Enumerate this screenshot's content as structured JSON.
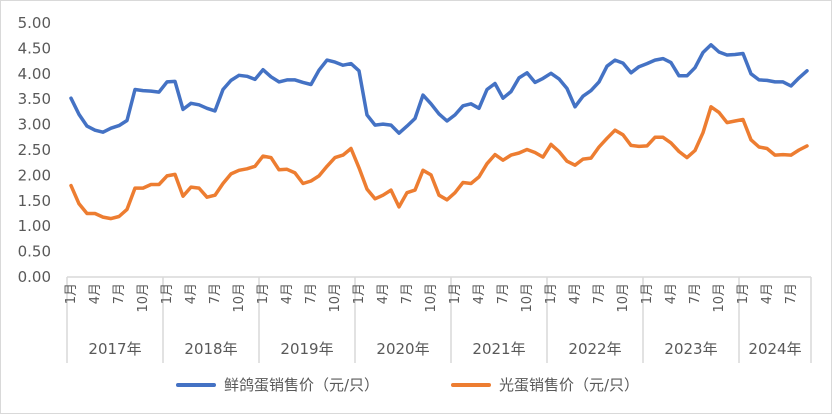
{
  "chart_data": {
    "type": "line",
    "title": "",
    "xlabel": "",
    "ylabel": "",
    "ylim": [
      0,
      5
    ],
    "y_ticks": [
      "0.00",
      "0.50",
      "1.00",
      "1.50",
      "2.00",
      "2.50",
      "3.00",
      "3.50",
      "4.00",
      "4.50",
      "5.00"
    ],
    "grid": false,
    "legend_position": "bottom",
    "years": [
      "2017年",
      "2018年",
      "2019年",
      "2020年",
      "2021年",
      "2022年",
      "2023年",
      "2024年"
    ],
    "months_per_year": [
      12,
      12,
      12,
      12,
      12,
      12,
      12,
      9
    ],
    "month_tick_labels": [
      "1月",
      "4月",
      "7月",
      "10月"
    ],
    "series": [
      {
        "name": "鲜鸽蛋销售价（元/只）",
        "color": "#4472C4",
        "values": [
          3.52,
          3.2,
          2.97,
          2.89,
          2.85,
          2.93,
          2.98,
          3.08,
          3.69,
          3.67,
          3.66,
          3.64,
          3.84,
          3.85,
          3.3,
          3.42,
          3.39,
          3.32,
          3.27,
          3.69,
          3.87,
          3.97,
          3.95,
          3.89,
          4.08,
          3.94,
          3.84,
          3.88,
          3.88,
          3.83,
          3.79,
          4.07,
          4.27,
          4.23,
          4.17,
          4.2,
          4.06,
          3.19,
          2.99,
          3.01,
          2.99,
          2.83,
          2.97,
          3.12,
          3.58,
          3.41,
          3.21,
          3.07,
          3.19,
          3.37,
          3.41,
          3.32,
          3.69,
          3.81,
          3.52,
          3.65,
          3.92,
          4.02,
          3.83,
          3.91,
          4.01,
          3.9,
          3.71,
          3.35,
          3.56,
          3.67,
          3.84,
          4.15,
          4.27,
          4.21,
          4.02,
          4.14,
          4.2,
          4.27,
          4.3,
          4.22,
          3.96,
          3.96,
          4.12,
          4.42,
          4.57,
          4.43,
          4.37,
          4.38,
          4.4,
          4.0,
          3.88,
          3.87,
          3.84,
          3.84,
          3.76,
          3.92,
          4.06
        ]
      },
      {
        "name": "光蛋销售价（元/只）",
        "color": "#ED7D31",
        "values": [
          1.8,
          1.44,
          1.25,
          1.25,
          1.18,
          1.15,
          1.19,
          1.33,
          1.75,
          1.75,
          1.82,
          1.82,
          1.99,
          2.02,
          1.59,
          1.77,
          1.75,
          1.57,
          1.61,
          1.84,
          2.03,
          2.1,
          2.13,
          2.18,
          2.38,
          2.35,
          2.11,
          2.12,
          2.05,
          1.84,
          1.89,
          1.99,
          2.18,
          2.35,
          2.4,
          2.53,
          2.15,
          1.73,
          1.54,
          1.61,
          1.71,
          1.38,
          1.66,
          1.71,
          2.1,
          2.01,
          1.61,
          1.52,
          1.66,
          1.86,
          1.84,
          1.97,
          2.23,
          2.41,
          2.3,
          2.4,
          2.44,
          2.51,
          2.45,
          2.36,
          2.61,
          2.47,
          2.28,
          2.2,
          2.32,
          2.34,
          2.56,
          2.73,
          2.89,
          2.8,
          2.59,
          2.57,
          2.58,
          2.75,
          2.75,
          2.64,
          2.47,
          2.35,
          2.49,
          2.84,
          3.35,
          3.24,
          3.04,
          3.07,
          3.1,
          2.7,
          2.56,
          2.53,
          2.4,
          2.41,
          2.4,
          2.5,
          2.58
        ]
      }
    ]
  }
}
